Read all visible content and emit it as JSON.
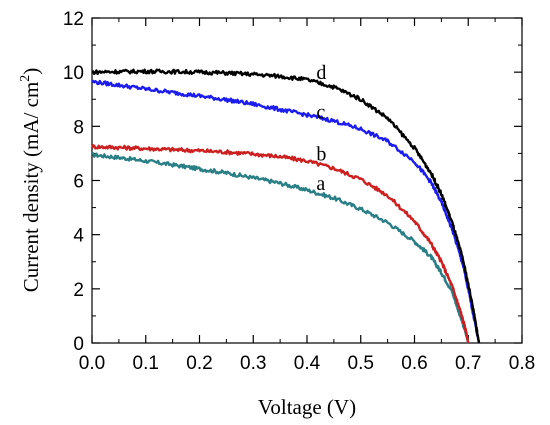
{
  "chart_data": {
    "type": "line",
    "xlabel": "Voltage (V)",
    "ylabel_main": "Current density (mA/ cm",
    "ylabel_sup": "2",
    "ylabel_close": ")",
    "xlim": [
      0.0,
      0.8
    ],
    "ylim": [
      0,
      12
    ],
    "xticks": [
      "0.0",
      "0.1",
      "0.2",
      "0.3",
      "0.4",
      "0.5",
      "0.6",
      "0.7",
      "0.8"
    ],
    "yticks": [
      "0",
      "2",
      "4",
      "6",
      "8",
      "10",
      "12"
    ],
    "grid": false,
    "series": [
      {
        "name": "a",
        "color": "#2a7f86",
        "label_at": [
          0.41,
          5.9
        ],
        "points": [
          [
            0.0,
            6.95
          ],
          [
            0.05,
            6.85
          ],
          [
            0.1,
            6.72
          ],
          [
            0.15,
            6.58
          ],
          [
            0.2,
            6.43
          ],
          [
            0.25,
            6.28
          ],
          [
            0.3,
            6.1
          ],
          [
            0.35,
            5.9
          ],
          [
            0.4,
            5.65
          ],
          [
            0.45,
            5.35
          ],
          [
            0.5,
            4.95
          ],
          [
            0.55,
            4.45
          ],
          [
            0.6,
            3.75
          ],
          [
            0.63,
            3.2
          ],
          [
            0.65,
            2.6
          ],
          [
            0.67,
            1.9
          ],
          [
            0.685,
            1.0
          ],
          [
            0.695,
            0.4
          ],
          [
            0.7,
            0.0
          ]
        ]
      },
      {
        "name": "b",
        "color": "#cc1f1f",
        "label_at": [
          0.41,
          7.0
        ],
        "points": [
          [
            0.0,
            7.25
          ],
          [
            0.05,
            7.22
          ],
          [
            0.1,
            7.18
          ],
          [
            0.15,
            7.14
          ],
          [
            0.2,
            7.1
          ],
          [
            0.25,
            7.05
          ],
          [
            0.3,
            6.98
          ],
          [
            0.35,
            6.88
          ],
          [
            0.4,
            6.72
          ],
          [
            0.45,
            6.45
          ],
          [
            0.5,
            6.05
          ],
          [
            0.55,
            5.45
          ],
          [
            0.6,
            4.5
          ],
          [
            0.63,
            3.7
          ],
          [
            0.65,
            3.0
          ],
          [
            0.67,
            2.1
          ],
          [
            0.685,
            1.2
          ],
          [
            0.695,
            0.5
          ],
          [
            0.7,
            0.0
          ]
        ]
      },
      {
        "name": "c",
        "color": "#1c1cee",
        "label_at": [
          0.41,
          8.55
        ],
        "points": [
          [
            0.0,
            9.65
          ],
          [
            0.05,
            9.52
          ],
          [
            0.1,
            9.38
          ],
          [
            0.15,
            9.25
          ],
          [
            0.2,
            9.12
          ],
          [
            0.25,
            8.98
          ],
          [
            0.3,
            8.82
          ],
          [
            0.35,
            8.62
          ],
          [
            0.4,
            8.42
          ],
          [
            0.45,
            8.2
          ],
          [
            0.5,
            7.9
          ],
          [
            0.55,
            7.45
          ],
          [
            0.6,
            6.7
          ],
          [
            0.63,
            5.95
          ],
          [
            0.65,
            5.2
          ],
          [
            0.67,
            4.2
          ],
          [
            0.69,
            2.9
          ],
          [
            0.705,
            1.5
          ],
          [
            0.715,
            0.5
          ],
          [
            0.72,
            0.0
          ]
        ]
      },
      {
        "name": "d",
        "color": "#000000",
        "label_at": [
          0.41,
          10.0
        ],
        "points": [
          [
            0.0,
            10.0
          ],
          [
            0.05,
            10.02
          ],
          [
            0.1,
            10.03
          ],
          [
            0.15,
            10.02
          ],
          [
            0.2,
            10.0
          ],
          [
            0.25,
            9.97
          ],
          [
            0.3,
            9.92
          ],
          [
            0.35,
            9.85
          ],
          [
            0.4,
            9.72
          ],
          [
            0.45,
            9.45
          ],
          [
            0.5,
            9.0
          ],
          [
            0.55,
            8.3
          ],
          [
            0.6,
            7.2
          ],
          [
            0.63,
            6.3
          ],
          [
            0.65,
            5.5
          ],
          [
            0.67,
            4.45
          ],
          [
            0.69,
            3.1
          ],
          [
            0.705,
            1.7
          ],
          [
            0.715,
            0.6
          ],
          [
            0.72,
            0.0
          ]
        ]
      }
    ]
  }
}
